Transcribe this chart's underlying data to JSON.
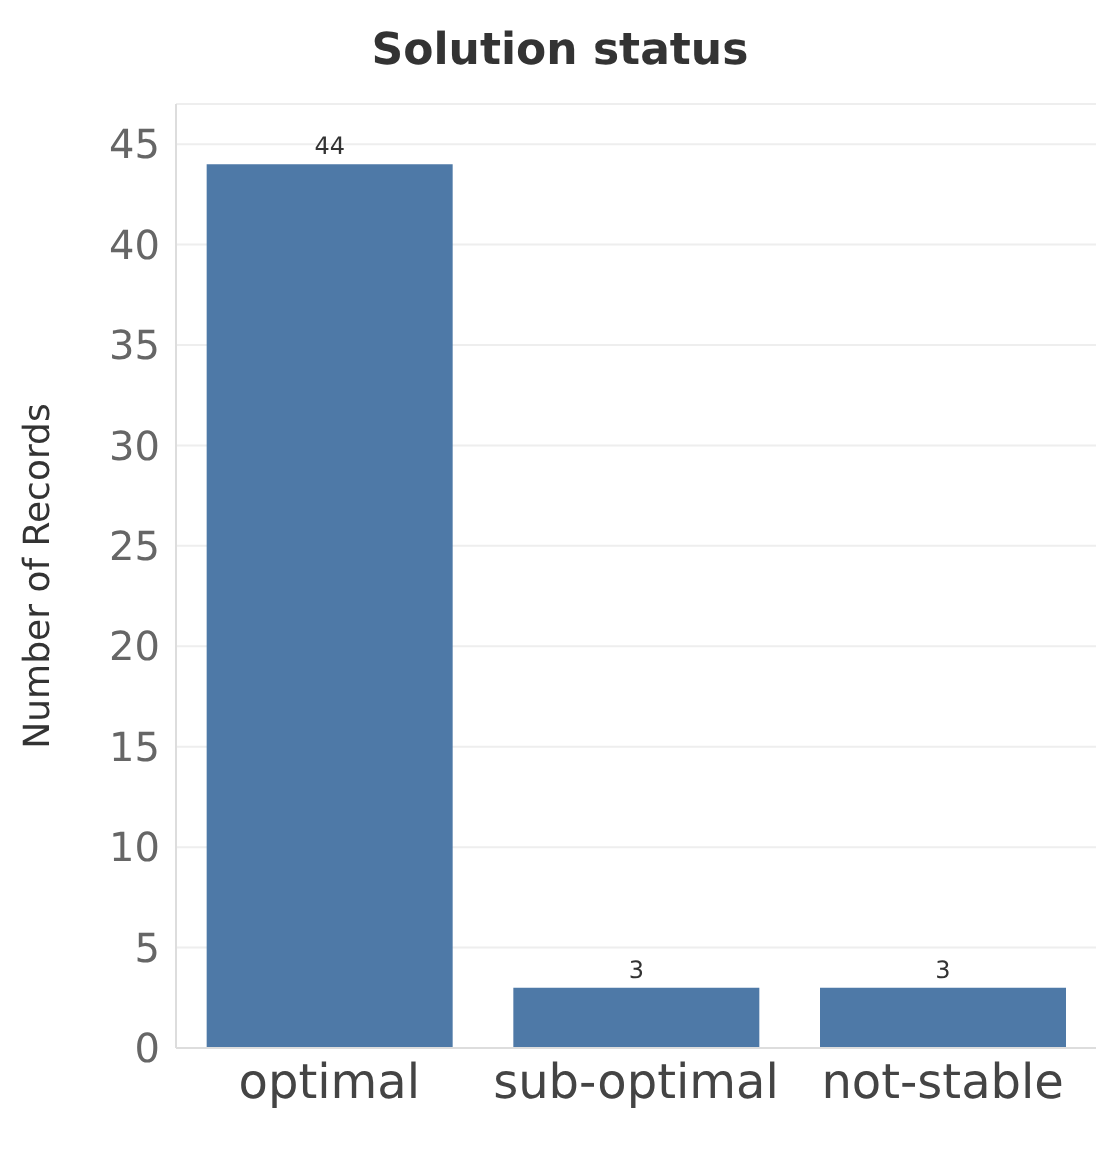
{
  "chart_data": {
    "type": "bar",
    "title": "Solution status",
    "ylabel": "Number of Records",
    "categories": [
      "optimal",
      "sub-optimal",
      "not-stable"
    ],
    "values": [
      44,
      3,
      3
    ],
    "color": "#4e79a7",
    "ylim": [
      0,
      47
    ],
    "yticks": [
      0,
      5,
      10,
      15,
      20,
      25,
      30,
      35,
      40,
      45
    ],
    "grid": "y",
    "data_labels": true
  }
}
